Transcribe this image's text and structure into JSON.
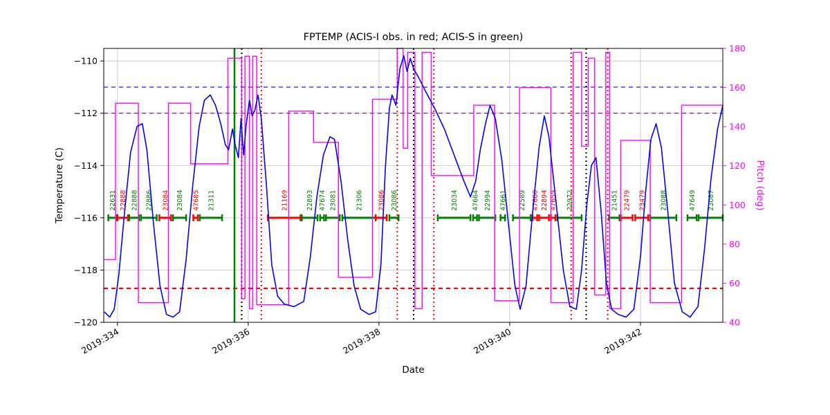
{
  "chart_data": {
    "type": "line",
    "title": "FPTEMP (ACIS-I obs. in red; ACIS-S in green)",
    "xlabel": "Date",
    "ylabel": "Temperature (C)",
    "y2label": "Pitch (deg)",
    "xlim": [
      333.79,
      343.26
    ],
    "ylim": [
      -120,
      -109.52
    ],
    "y2lim": [
      40,
      180
    ],
    "xticks": [
      {
        "value": 334,
        "label": "2019:334"
      },
      {
        "value": 336,
        "label": "2019:336"
      },
      {
        "value": 338,
        "label": "2019:338"
      },
      {
        "value": 340,
        "label": "2019:340"
      },
      {
        "value": 342,
        "label": "2019:342"
      }
    ],
    "yticks": [
      {
        "value": -110,
        "label": "−110"
      },
      {
        "value": -112,
        "label": "−112"
      },
      {
        "value": -114,
        "label": "−114"
      },
      {
        "value": -116,
        "label": "−116"
      },
      {
        "value": -118,
        "label": "−118"
      },
      {
        "value": -120,
        "label": "−120"
      }
    ],
    "y2ticks": [
      {
        "value": 40,
        "label": "40"
      },
      {
        "value": 60,
        "label": "60"
      },
      {
        "value": 80,
        "label": "80"
      },
      {
        "value": 100,
        "label": "100"
      },
      {
        "value": 120,
        "label": "120"
      },
      {
        "value": 140,
        "label": "140"
      },
      {
        "value": 160,
        "label": "160"
      },
      {
        "value": 180,
        "label": "180"
      }
    ],
    "grid": true,
    "colors": {
      "temp": "#0000ff",
      "pitch": "#ff00ff",
      "acis_i": "#ff0000",
      "acis_s": "#008000",
      "grid": "#c8c8c8"
    },
    "hlines": [
      {
        "y": -111.0,
        "color": "blue",
        "style": "dashed",
        "width": 1.2
      },
      {
        "y": -112.0,
        "color": "purple",
        "style": "dashed",
        "width": 1.2
      },
      {
        "y": -118.7,
        "color": "red",
        "style": "dashed",
        "width": 2.2
      }
    ],
    "vlines": [
      {
        "x": 335.79,
        "color": "green",
        "style": "solid",
        "width": 2.5
      },
      {
        "x": 335.9,
        "color": "black",
        "style": "dotted",
        "width": 2
      },
      {
        "x": 336.2,
        "color": "red",
        "style": "dotted",
        "width": 2
      },
      {
        "x": 338.28,
        "color": "red",
        "style": "dotted",
        "width": 2
      },
      {
        "x": 338.53,
        "color": "black",
        "style": "dotted",
        "width": 2
      },
      {
        "x": 338.84,
        "color": "red",
        "style": "dotted",
        "width": 2
      },
      {
        "x": 340.94,
        "color": "red",
        "style": "dotted",
        "width": 2
      },
      {
        "x": 341.17,
        "color": "black",
        "style": "dotted",
        "width": 2
      },
      {
        "x": 341.5,
        "color": "red",
        "style": "dotted",
        "width": 2
      }
    ],
    "obs_line_y": -116,
    "observations": [
      {
        "id": "22631",
        "color": "green",
        "start": 333.86,
        "stop": 333.99
      },
      {
        "id": "22888",
        "color": "red",
        "start": 334.0,
        "stop": 334.16
      },
      {
        "id": "22888",
        "color": "green",
        "start": 334.18,
        "stop": 334.33
      },
      {
        "id": "22886",
        "color": "green",
        "start": 334.36,
        "stop": 334.6
      },
      {
        "id": "23084",
        "color": "red",
        "start": 334.64,
        "stop": 334.82
      },
      {
        "id": "23084",
        "color": "green",
        "start": 334.85,
        "stop": 335.05
      },
      {
        "id": "47685",
        "color": "red",
        "start": 335.16,
        "stop": 335.23
      },
      {
        "id": "21311",
        "color": "green",
        "start": 335.26,
        "stop": 335.6
      },
      {
        "id": "21169",
        "color": "red",
        "start": 336.3,
        "stop": 336.8
      },
      {
        "id": "22893",
        "color": "green",
        "start": 336.82,
        "stop": 337.06
      },
      {
        "id": "47674",
        "color": "green",
        "start": 337.1,
        "stop": 337.16
      },
      {
        "id": "23081",
        "color": "green",
        "start": 337.19,
        "stop": 337.4
      },
      {
        "id": "21306",
        "color": "green",
        "start": 337.44,
        "stop": 337.95
      },
      {
        "id": "23086",
        "color": "red",
        "start": 337.95,
        "stop": 338.12
      },
      {
        "id": "23086",
        "color": "green",
        "start": 338.16,
        "stop": 338.3
      },
      {
        "id": "23034",
        "color": "green",
        "start": 338.9,
        "stop": 339.4
      },
      {
        "id": "47664",
        "color": "green",
        "start": 339.44,
        "stop": 339.5
      },
      {
        "id": "22994",
        "color": "green",
        "start": 339.53,
        "stop": 339.78
      },
      {
        "id": "47661",
        "color": "green",
        "start": 339.86,
        "stop": 339.93
      },
      {
        "id": "22589",
        "color": "green",
        "start": 340.05,
        "stop": 340.32
      },
      {
        "id": "47660",
        "color": "red",
        "start": 340.35,
        "stop": 340.42
      },
      {
        "id": "22894",
        "color": "red",
        "start": 340.45,
        "stop": 340.6
      },
      {
        "id": "47659",
        "color": "red",
        "start": 340.63,
        "stop": 340.7
      },
      {
        "id": "22972",
        "color": "green",
        "start": 340.73,
        "stop": 341.1
      },
      {
        "id": "21451",
        "color": "green",
        "start": 341.52,
        "stop": 341.68
      },
      {
        "id": "22479",
        "color": "red",
        "start": 341.7,
        "stop": 341.88
      },
      {
        "id": "23479",
        "color": "red",
        "start": 341.92,
        "stop": 342.12
      },
      {
        "id": "23088",
        "color": "green",
        "start": 342.15,
        "stop": 342.55
      },
      {
        "id": "47649",
        "color": "green",
        "start": 342.72,
        "stop": 342.86
      },
      {
        "id": "23087",
        "color": "green",
        "start": 342.89,
        "stop": 343.26
      }
    ],
    "series": [
      {
        "name": "Pitch",
        "axis": "right",
        "color": "#ff00ff",
        "step": true,
        "width": 1.4,
        "x": [
          333.8,
          333.97,
          334.32,
          334.78,
          335.12,
          335.69,
          335.9,
          335.95,
          336.02,
          336.07,
          336.13,
          336.62,
          337.0,
          337.38,
          337.9,
          338.28,
          338.37,
          338.44,
          338.55,
          338.66,
          338.8,
          339.45,
          339.77,
          340.15,
          340.63,
          340.97,
          341.1,
          341.2,
          341.3,
          341.47,
          341.53,
          341.7,
          342.15,
          342.63,
          343.26
        ],
        "y": [
          72,
          152,
          50,
          152,
          121,
          175,
          52,
          176,
          47,
          176,
          49,
          148,
          132,
          63,
          154,
          180,
          129,
          178,
          47,
          178,
          115,
          151,
          51,
          160,
          50,
          178,
          130,
          175,
          54,
          178,
          47,
          133,
          50,
          151,
          151
        ]
      },
      {
        "name": "FPTEMP",
        "axis": "left",
        "color": "#0000ff",
        "step": false,
        "width": 1.6,
        "x": [
          333.8,
          333.88,
          333.95,
          334.02,
          334.1,
          334.2,
          334.3,
          334.38,
          334.45,
          334.55,
          334.65,
          334.75,
          334.85,
          334.95,
          335.05,
          335.15,
          335.25,
          335.33,
          335.42,
          335.5,
          335.58,
          335.65,
          335.7,
          335.76,
          335.8,
          335.85,
          335.89,
          335.93,
          335.97,
          336.02,
          336.06,
          336.1,
          336.15,
          336.2,
          336.28,
          336.36,
          336.45,
          336.55,
          336.7,
          336.85,
          336.95,
          337.05,
          337.15,
          337.25,
          337.32,
          337.42,
          337.52,
          337.62,
          337.72,
          337.85,
          337.95,
          338.03,
          338.1,
          338.16,
          338.2,
          338.26,
          338.32,
          338.38,
          338.43,
          338.48,
          338.53,
          338.6,
          338.7,
          338.85,
          339.0,
          339.15,
          339.3,
          339.4,
          339.48,
          339.55,
          339.63,
          339.7,
          339.78,
          339.88,
          339.98,
          340.08,
          340.16,
          340.25,
          340.35,
          340.45,
          340.53,
          340.6,
          340.7,
          340.82,
          340.92,
          341.02,
          341.1,
          341.18,
          341.25,
          341.32,
          341.4,
          341.48,
          341.56,
          341.66,
          341.78,
          341.9,
          342.0,
          342.08,
          342.16,
          342.24,
          342.32,
          342.42,
          342.52,
          342.64,
          342.76,
          342.88,
          342.98,
          343.08,
          343.18,
          343.26
        ],
        "y": [
          -119.6,
          -119.8,
          -119.5,
          -118.2,
          -116.0,
          -113.5,
          -112.5,
          -112.4,
          -113.4,
          -116.2,
          -118.6,
          -119.7,
          -119.8,
          -119.6,
          -117.6,
          -114.8,
          -112.5,
          -111.5,
          -111.3,
          -111.7,
          -112.4,
          -113.2,
          -113.4,
          -112.6,
          -113.2,
          -113.7,
          -112.2,
          -113.6,
          -112.4,
          -111.5,
          -112.1,
          -111.9,
          -111.3,
          -112.2,
          -114.8,
          -117.8,
          -119.0,
          -119.3,
          -119.4,
          -119.2,
          -117.5,
          -115.2,
          -113.6,
          -112.9,
          -113.0,
          -114.6,
          -116.8,
          -118.6,
          -119.5,
          -119.7,
          -119.6,
          -117.8,
          -114.0,
          -111.8,
          -111.3,
          -111.7,
          -110.3,
          -109.8,
          -110.4,
          -109.9,
          -110.3,
          -110.6,
          -111.1,
          -111.8,
          -112.6,
          -113.6,
          -114.6,
          -115.2,
          -114.6,
          -113.4,
          -112.4,
          -111.7,
          -112.2,
          -113.8,
          -116.2,
          -118.6,
          -119.5,
          -118.6,
          -115.8,
          -113.3,
          -112.1,
          -112.9,
          -115.2,
          -118.0,
          -119.4,
          -119.5,
          -118.0,
          -115.5,
          -114.0,
          -113.7,
          -115.8,
          -118.5,
          -119.5,
          -119.7,
          -119.8,
          -119.5,
          -117.5,
          -115.0,
          -113.0,
          -112.4,
          -113.3,
          -115.8,
          -118.5,
          -119.6,
          -119.8,
          -119.4,
          -117.2,
          -114.5,
          -112.6,
          -111.7
        ]
      }
    ]
  }
}
